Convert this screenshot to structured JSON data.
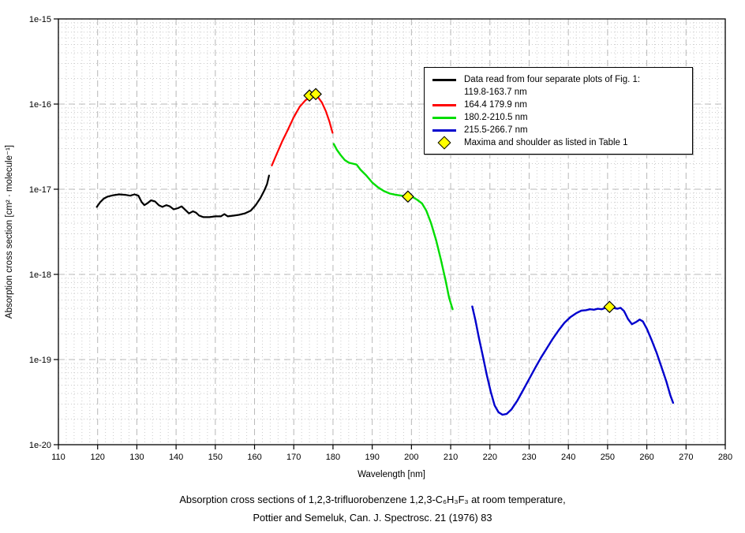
{
  "page": {
    "caption_line1": "Absorption cross sections of 1,2,3-trifluorobenzene 1,2,3-C₆H₃F₃ at room temperature,",
    "caption_line2": "Pottier and Semeluk, Can. J. Spectrosc. 21 (1976) 83"
  },
  "colors": {
    "segment_black": "#000000",
    "segment_red": "#ff0000",
    "segment_green": "#00dd00",
    "segment_blue": "#0000cd",
    "marker_fill": "#ffff00",
    "grid_minor": "#cbcbcb",
    "grid_major": "#b8b8b8"
  },
  "legend": {
    "entries": [
      {
        "swatch": "line",
        "color": "#000000",
        "label": "Data read from four separate plots of Fig. 1:",
        "label2": "119.8-163.7 nm"
      },
      {
        "swatch": "line",
        "color": "#ff0000",
        "label": "164.4 179.9 nm"
      },
      {
        "swatch": "line",
        "color": "#00dd00",
        "label": "180.2-210.5 nm"
      },
      {
        "swatch": "line",
        "color": "#0000cd",
        "label": "215.5-266.7 nm"
      },
      {
        "swatch": "diamond",
        "color": "#ffff00",
        "label": "Maxima and shoulder as listed in Table 1"
      }
    ]
  },
  "chart_data": {
    "type": "line",
    "title": "",
    "xlabel": "Wavelength [nm]",
    "ylabel": "Absorption cross section [cm² · molecule⁻¹]",
    "xlim": [
      110,
      280
    ],
    "ylog_lim": [
      -20,
      -15
    ],
    "grid": "log-log minor dotted, major dashed, on",
    "legend_position": "upper right",
    "x_ticks": [
      110,
      120,
      130,
      140,
      150,
      160,
      170,
      180,
      190,
      200,
      210,
      220,
      230,
      240,
      250,
      260,
      270,
      280
    ],
    "y_tick_labels": [
      "1e-15",
      "1e-16",
      "1e-17",
      "1e-18",
      "1e-19",
      "1e-20"
    ],
    "series": [
      {
        "name": "119.8-163.7 nm",
        "color": "#000000",
        "width": 2.2,
        "points": [
          [
            119.8,
            6.2e-18
          ],
          [
            120.6,
            7e-18
          ],
          [
            121.6,
            7.8e-18
          ],
          [
            122.6,
            8.2e-18
          ],
          [
            124,
            8.5e-18
          ],
          [
            125.5,
            8.7e-18
          ],
          [
            127,
            8.6e-18
          ],
          [
            128.3,
            8.4e-18
          ],
          [
            129.4,
            8.7e-18
          ],
          [
            130.4,
            8.4e-18
          ],
          [
            131.2,
            7.1e-18
          ],
          [
            131.9,
            6.5e-18
          ],
          [
            132.8,
            6.9e-18
          ],
          [
            133.6,
            7.4e-18
          ],
          [
            134.6,
            7.2e-18
          ],
          [
            135.6,
            6.5e-18
          ],
          [
            136.5,
            6.2e-18
          ],
          [
            137.5,
            6.5e-18
          ],
          [
            138.4,
            6.3e-18
          ],
          [
            139.4,
            5.8e-18
          ],
          [
            140.5,
            6e-18
          ],
          [
            141.4,
            6.3e-18
          ],
          [
            142.4,
            5.7e-18
          ],
          [
            143.3,
            5.2e-18
          ],
          [
            144.3,
            5.5e-18
          ],
          [
            145.1,
            5.3e-18
          ],
          [
            145.9,
            4.9e-18
          ],
          [
            147,
            4.7e-18
          ],
          [
            148.5,
            4.7e-18
          ],
          [
            150,
            4.8e-18
          ],
          [
            151.4,
            4.8e-18
          ],
          [
            152.3,
            5.1e-18
          ],
          [
            153.2,
            4.8e-18
          ],
          [
            154.6,
            4.9e-18
          ],
          [
            156,
            5e-18
          ],
          [
            157.5,
            5.2e-18
          ],
          [
            159,
            5.6e-18
          ],
          [
            160.3,
            6.5e-18
          ],
          [
            161.5,
            7.9e-18
          ],
          [
            162.5,
            9.7e-18
          ],
          [
            163.2,
            1.15e-17
          ],
          [
            163.7,
            1.45e-17
          ]
        ]
      },
      {
        "name": "164.4 179.9 nm",
        "color": "#ff0000",
        "width": 2.2,
        "points": [
          [
            164.4,
            1.9e-17
          ],
          [
            165.5,
            2.5e-17
          ],
          [
            167,
            3.6e-17
          ],
          [
            168.5,
            5e-17
          ],
          [
            170,
            7e-17
          ],
          [
            171.5,
            9.3e-17
          ],
          [
            173,
            1.11e-16
          ],
          [
            174.2,
            1.2e-16
          ],
          [
            175.2,
            1.24e-16
          ],
          [
            176.2,
            1.2e-16
          ],
          [
            177.2,
            1.04e-16
          ],
          [
            178.2,
            8.2e-17
          ],
          [
            179.1,
            6.2e-17
          ],
          [
            179.9,
            4.6e-17
          ]
        ]
      },
      {
        "name": "180.2-210.5 nm",
        "color": "#00dd00",
        "width": 2.4,
        "points": [
          [
            180.2,
            3.4e-17
          ],
          [
            181,
            2.9e-17
          ],
          [
            182,
            2.5e-17
          ],
          [
            183,
            2.2e-17
          ],
          [
            184,
            2.05e-17
          ],
          [
            185,
            2e-17
          ],
          [
            186,
            1.95e-17
          ],
          [
            187,
            1.7e-17
          ],
          [
            188.5,
            1.45e-17
          ],
          [
            190,
            1.2e-17
          ],
          [
            191.5,
            1.05e-17
          ],
          [
            193,
            9.5e-18
          ],
          [
            194.5,
            8.9e-18
          ],
          [
            196,
            8.6e-18
          ],
          [
            197.5,
            8.4e-18
          ],
          [
            199.1,
            8.2e-18
          ],
          [
            200.3,
            8.1e-18
          ],
          [
            201.5,
            7.5e-18
          ],
          [
            202.7,
            6.8e-18
          ],
          [
            203.8,
            5.6e-18
          ],
          [
            205,
            4e-18
          ],
          [
            206.3,
            2.5e-18
          ],
          [
            207.5,
            1.5e-18
          ],
          [
            208.7,
            8.5e-19
          ],
          [
            209.6,
            5.3e-19
          ],
          [
            210.5,
            3.9e-19
          ]
        ]
      },
      {
        "name": "215.5-266.7 nm",
        "color": "#0000cd",
        "width": 2.4,
        "points": [
          [
            215.5,
            4.2e-19
          ],
          [
            216.3,
            2.9e-19
          ],
          [
            217.2,
            1.8e-19
          ],
          [
            218.2,
            1.1e-19
          ],
          [
            219.2,
            6.6e-20
          ],
          [
            220.2,
            4.2e-20
          ],
          [
            221.2,
            2.9e-20
          ],
          [
            222.2,
            2.4e-20
          ],
          [
            223.2,
            2.25e-20
          ],
          [
            224.3,
            2.3e-20
          ],
          [
            225.5,
            2.6e-20
          ],
          [
            227,
            3.3e-20
          ],
          [
            228.5,
            4.4e-20
          ],
          [
            230,
            5.9e-20
          ],
          [
            231.5,
            7.9e-20
          ],
          [
            233,
            1.05e-19
          ],
          [
            234.5,
            1.35e-19
          ],
          [
            236,
            1.75e-19
          ],
          [
            237.5,
            2.2e-19
          ],
          [
            239,
            2.7e-19
          ],
          [
            240.5,
            3.15e-19
          ],
          [
            242,
            3.5e-19
          ],
          [
            243.3,
            3.75e-19
          ],
          [
            244.5,
            3.8e-19
          ],
          [
            245.5,
            3.9e-19
          ],
          [
            246.5,
            3.85e-19
          ],
          [
            247.5,
            3.95e-19
          ],
          [
            248.5,
            3.9e-19
          ],
          [
            249.5,
            4.05e-19
          ],
          [
            250.5,
            4.1e-19
          ],
          [
            251.5,
            4.05e-19
          ],
          [
            252.5,
            3.95e-19
          ],
          [
            253.3,
            4.05e-19
          ],
          [
            254.2,
            3.7e-19
          ],
          [
            255.2,
            3e-19
          ],
          [
            256.2,
            2.6e-19
          ],
          [
            257.2,
            2.75e-19
          ],
          [
            258.2,
            2.95e-19
          ],
          [
            259,
            2.8e-19
          ],
          [
            260,
            2.3e-19
          ],
          [
            261.2,
            1.7e-19
          ],
          [
            262.5,
            1.2e-19
          ],
          [
            263.8,
            8e-20
          ],
          [
            265,
            5.5e-20
          ],
          [
            266,
            3.8e-20
          ],
          [
            266.7,
            3.1e-20
          ]
        ]
      }
    ],
    "markers": {
      "name": "Maxima and shoulder as listed in Table 1",
      "shape": "diamond",
      "fill": "#ffff00",
      "points": [
        [
          174.0,
          1.26e-16
        ],
        [
          175.6,
          1.31e-16
        ],
        [
          199.1,
          8.2e-18
        ],
        [
          250.5,
          4.15e-19
        ]
      ]
    }
  }
}
